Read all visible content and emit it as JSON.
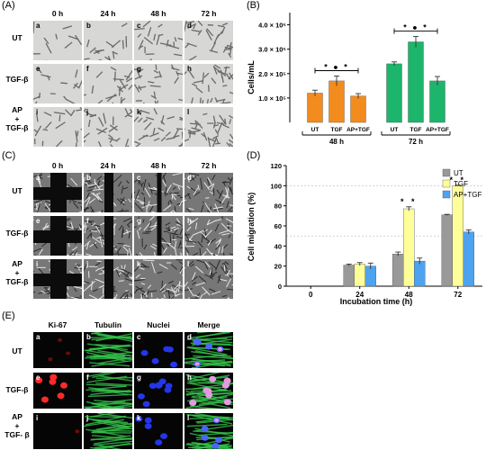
{
  "panel_labels": {
    "A": "(A)",
    "B": "(B)",
    "C": "(C)",
    "D": "(D)",
    "E": "(E)"
  },
  "panel_a": {
    "columns": [
      "0 h",
      "24 h",
      "48 h",
      "72 h"
    ],
    "rows": [
      "UT",
      "TGF-β",
      "AP\n+\nTGF-β"
    ],
    "letters": [
      "a",
      "b",
      "c",
      "d",
      "e",
      "f",
      "g",
      "h",
      "i",
      "j",
      "k",
      "l"
    ]
  },
  "panel_c": {
    "columns": [
      "0 h",
      "24 h",
      "48 h",
      "72 h"
    ],
    "rows": [
      "UT",
      "TGF-β",
      "AP\n+\nTGF-β"
    ],
    "letters": [
      "a",
      "b",
      "c",
      "d",
      "e",
      "f",
      "g",
      "h",
      "i",
      "j",
      "k",
      "l"
    ]
  },
  "panel_e": {
    "columns": [
      "Ki-67",
      "Tubulin",
      "Nuclei",
      "Merge"
    ],
    "rows": [
      "UT",
      "TGF-β",
      "AP\n+\nTGF- β"
    ],
    "letters": [
      "a",
      "b",
      "c",
      "d",
      "e",
      "f",
      "g",
      "h",
      "i",
      "j",
      "k",
      "l"
    ]
  },
  "chart_data": [
    {
      "type": "bar",
      "panel": "B",
      "ylabel": "Cells/mL",
      "ylim": [
        0,
        450000
      ],
      "yticks": [
        "1.0 × 10⁵",
        "2.0 × 10⁵",
        "3.0 × 10⁵",
        "4.0 × 10⁵"
      ],
      "ytick_values": [
        100000,
        200000,
        300000,
        400000
      ],
      "groups": [
        {
          "label": "48 h",
          "categories": [
            "UT",
            "TGF",
            "AP+TGF"
          ],
          "values": [
            120000,
            170000,
            108000
          ],
          "errors": [
            12000,
            20000,
            10000
          ],
          "colors": [
            "#f28c1e",
            "#f28c1e",
            "#f28c1e"
          ]
        },
        {
          "label": "72 h",
          "categories": [
            "UT",
            "TGF",
            "AP+TGF"
          ],
          "values": [
            240000,
            330000,
            170000
          ],
          "errors": [
            8000,
            22000,
            18000
          ],
          "colors": [
            "#1db56c",
            "#1db56c",
            "#1db56c"
          ]
        }
      ],
      "annotations": [
        "* ● *",
        "* ● *"
      ]
    },
    {
      "type": "bar",
      "panel": "D",
      "ylabel": "Cell migration (%)",
      "xlabel": "Incubation time (h)",
      "ylim": [
        0,
        120
      ],
      "yticks": [
        "0",
        "20",
        "40",
        "60",
        "80",
        "100",
        "120"
      ],
      "categories": [
        "0",
        "24",
        "48",
        "72"
      ],
      "series": [
        {
          "name": "UT",
          "color": "#999999",
          "values": [
            0,
            21,
            32,
            71
          ],
          "errors": [
            0,
            1,
            2,
            0.5
          ]
        },
        {
          "name": "TGF",
          "color": "#ffff99",
          "values": [
            0,
            22,
            77,
            100
          ],
          "errors": [
            0,
            1.5,
            2,
            0.5
          ]
        },
        {
          "name": "AP+TGF",
          "color": "#4da3f0",
          "values": [
            0,
            20,
            25,
            54
          ],
          "errors": [
            0,
            3,
            3,
            2
          ]
        }
      ],
      "annotations": [
        "* *",
        "* *"
      ],
      "legend": "top-right"
    }
  ]
}
